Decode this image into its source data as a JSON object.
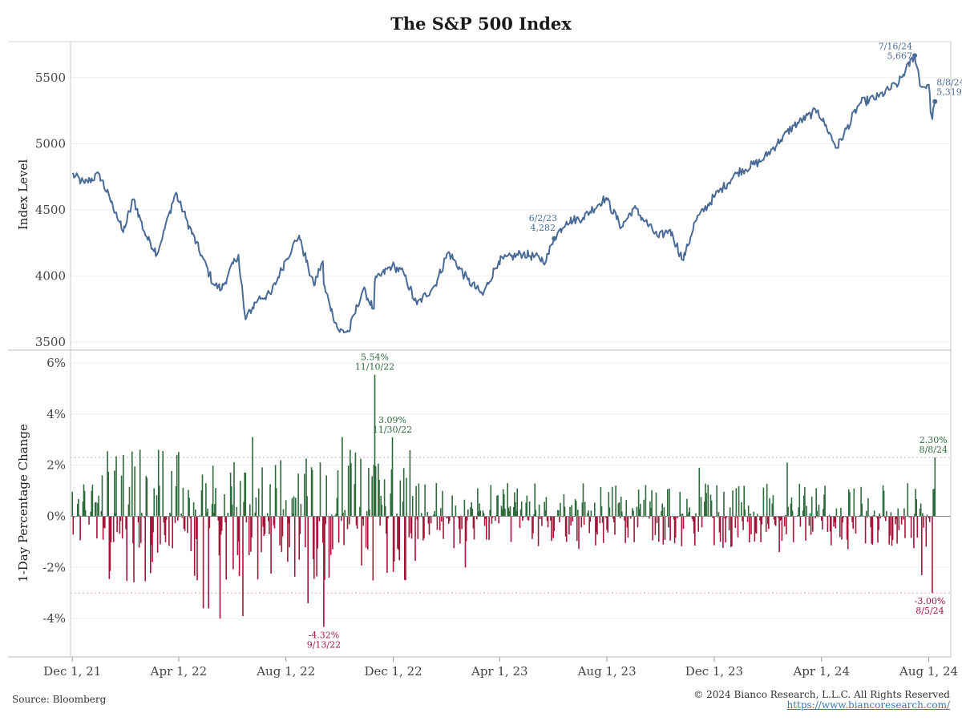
{
  "chart_data": {
    "title": "The S&P 500 Index",
    "type": "line+bar",
    "x_range": [
      "2021-11-29",
      "2024-08-26"
    ],
    "x_ticks": [
      {
        "date": "2021-12-01",
        "label": "Dec 1, 21"
      },
      {
        "date": "2022-04-01",
        "label": "Apr 1, 22"
      },
      {
        "date": "2022-08-01",
        "label": "Aug 1, 22"
      },
      {
        "date": "2022-12-01",
        "label": "Dec 1, 22"
      },
      {
        "date": "2023-04-01",
        "label": "Apr 1, 23"
      },
      {
        "date": "2023-08-01",
        "label": "Aug 1, 23"
      },
      {
        "date": "2023-12-01",
        "label": "Dec 1, 23"
      },
      {
        "date": "2024-04-01",
        "label": "Apr 1, 24"
      },
      {
        "date": "2024-08-01",
        "label": "Aug 1, 24"
      }
    ],
    "top_panel": {
      "type": "line",
      "ylabel": "Index Level",
      "ylim": [
        3450,
        5760
      ],
      "y_ticks": [
        3500,
        4000,
        4500,
        5000,
        5500
      ],
      "color": "#4a6b96",
      "series": [
        {
          "date": "2021-12-01",
          "value": 4770
        },
        {
          "date": "2021-12-15",
          "value": 4700
        },
        {
          "date": "2022-01-01",
          "value": 4766
        },
        {
          "date": "2022-01-20",
          "value": 4480
        },
        {
          "date": "2022-01-28",
          "value": 4330
        },
        {
          "date": "2022-02-09",
          "value": 4580
        },
        {
          "date": "2022-02-24",
          "value": 4290
        },
        {
          "date": "2022-03-08",
          "value": 4170
        },
        {
          "date": "2022-03-29",
          "value": 4630
        },
        {
          "date": "2022-04-11",
          "value": 4410
        },
        {
          "date": "2022-04-29",
          "value": 4130
        },
        {
          "date": "2022-05-11",
          "value": 3935
        },
        {
          "date": "2022-05-20",
          "value": 3900
        },
        {
          "date": "2022-06-08",
          "value": 4160
        },
        {
          "date": "2022-06-16",
          "value": 3670
        },
        {
          "date": "2022-07-01",
          "value": 3830
        },
        {
          "date": "2022-07-15",
          "value": 3860
        },
        {
          "date": "2022-08-01",
          "value": 4120
        },
        {
          "date": "2022-08-16",
          "value": 4305
        },
        {
          "date": "2022-09-02",
          "value": 3925
        },
        {
          "date": "2022-09-12",
          "value": 4110
        },
        {
          "date": "2022-09-13",
          "value": 3935
        },
        {
          "date": "2022-09-30",
          "value": 3585
        },
        {
          "date": "2022-10-12",
          "value": 3578
        },
        {
          "date": "2022-10-28",
          "value": 3900
        },
        {
          "date": "2022-11-09",
          "value": 3750
        },
        {
          "date": "2022-11-10",
          "value": 3956
        },
        {
          "date": "2022-11-30",
          "value": 4080
        },
        {
          "date": "2022-12-13",
          "value": 4020
        },
        {
          "date": "2022-12-28",
          "value": 3783
        },
        {
          "date": "2023-01-18",
          "value": 3930
        },
        {
          "date": "2023-02-02",
          "value": 4180
        },
        {
          "date": "2023-02-24",
          "value": 3970
        },
        {
          "date": "2023-03-13",
          "value": 3855
        },
        {
          "date": "2023-03-31",
          "value": 4110
        },
        {
          "date": "2023-04-28",
          "value": 4170
        },
        {
          "date": "2023-05-24",
          "value": 4115
        },
        {
          "date": "2023-06-02",
          "value": 4282
        },
        {
          "date": "2023-06-16",
          "value": 4410
        },
        {
          "date": "2023-07-05",
          "value": 4440
        },
        {
          "date": "2023-07-31",
          "value": 4590
        },
        {
          "date": "2023-08-18",
          "value": 4370
        },
        {
          "date": "2023-09-01",
          "value": 4515
        },
        {
          "date": "2023-09-29",
          "value": 4290
        },
        {
          "date": "2023-10-12",
          "value": 4350
        },
        {
          "date": "2023-10-27",
          "value": 4117
        },
        {
          "date": "2023-11-10",
          "value": 4415
        },
        {
          "date": "2023-12-01",
          "value": 4595
        },
        {
          "date": "2023-12-28",
          "value": 4783
        },
        {
          "date": "2024-01-24",
          "value": 4870
        },
        {
          "date": "2024-02-15",
          "value": 5030
        },
        {
          "date": "2024-03-01",
          "value": 5137
        },
        {
          "date": "2024-03-28",
          "value": 5254
        },
        {
          "date": "2024-04-19",
          "value": 4967
        },
        {
          "date": "2024-05-15",
          "value": 5308
        },
        {
          "date": "2024-06-05",
          "value": 5354
        },
        {
          "date": "2024-06-28",
          "value": 5460
        },
        {
          "date": "2024-07-16",
          "value": 5667
        },
        {
          "date": "2024-07-24",
          "value": 5427
        },
        {
          "date": "2024-08-01",
          "value": 5446
        },
        {
          "date": "2024-08-05",
          "value": 5186
        },
        {
          "date": "2024-08-08",
          "value": 5319
        }
      ],
      "annotations": [
        {
          "date": "2023-06-02",
          "value": 4282,
          "text": [
            "6/2/23",
            "4,282"
          ]
        },
        {
          "date": "2024-07-16",
          "value": 5667,
          "text": [
            "7/16/24",
            "5,667"
          ]
        },
        {
          "date": "2024-08-08",
          "value": 5319,
          "text": [
            "8/8/24",
            "5,319"
          ]
        }
      ]
    },
    "bottom_panel": {
      "type": "bar",
      "ylabel": "1-Day Percentage Change",
      "ylim": [
        -5.5,
        6.5
      ],
      "y_ticks": [
        {
          "value": 6,
          "label": "6%"
        },
        {
          "value": 4,
          "label": "4%"
        },
        {
          "value": 2,
          "label": "2%"
        },
        {
          "value": 0,
          "label": "0%"
        },
        {
          "value": -2,
          "label": "-2%"
        },
        {
          "value": -4,
          "label": "-4%"
        }
      ],
      "positive_color": "#2e6b3c",
      "negative_color": "#a3163a",
      "reference_lines": [
        2.3,
        -3.0
      ],
      "extremes": [
        {
          "date": "2022-01-28",
          "value": 2.4
        },
        {
          "date": "2022-02-24",
          "value": 1.5
        },
        {
          "date": "2022-03-09",
          "value": 2.6
        },
        {
          "date": "2022-04-29",
          "value": -3.6
        },
        {
          "date": "2022-05-05",
          "value": -3.6
        },
        {
          "date": "2022-05-18",
          "value": -4.0
        },
        {
          "date": "2022-06-13",
          "value": -3.9
        },
        {
          "date": "2022-06-24",
          "value": 3.1
        },
        {
          "date": "2022-08-26",
          "value": -3.4
        },
        {
          "date": "2022-09-13",
          "value": -4.32
        },
        {
          "date": "2022-10-04",
          "value": 3.1
        },
        {
          "date": "2022-10-13",
          "value": 2.6
        },
        {
          "date": "2022-11-10",
          "value": 5.54
        },
        {
          "date": "2022-11-30",
          "value": 3.09
        },
        {
          "date": "2022-12-15",
          "value": -2.5
        },
        {
          "date": "2023-02-21",
          "value": -2.0
        },
        {
          "date": "2023-11-14",
          "value": 1.9
        },
        {
          "date": "2024-02-13",
          "value": -1.4
        },
        {
          "date": "2024-02-22",
          "value": 2.1
        },
        {
          "date": "2024-07-24",
          "value": -2.3
        },
        {
          "date": "2024-08-05",
          "value": -3.0
        },
        {
          "date": "2024-08-08",
          "value": 2.3
        }
      ],
      "annotations": [
        {
          "date": "2022-11-10",
          "value": 5.54,
          "text": [
            "5.54%",
            "11/10/22"
          ]
        },
        {
          "date": "2022-11-30",
          "value": 3.09,
          "text": [
            "3.09%",
            "11/30/22"
          ]
        },
        {
          "date": "2022-09-13",
          "value": -4.32,
          "text": [
            "-4.32%",
            "9/13/22"
          ]
        },
        {
          "date": "2024-08-08",
          "value": 2.3,
          "text": [
            "2.30%",
            "8/8/24"
          ]
        },
        {
          "date": "2024-08-05",
          "value": -3.0,
          "text": [
            "-3.00%",
            "8/5/24"
          ]
        }
      ]
    }
  },
  "footer": {
    "source": "Source: Bloomberg",
    "copyright": "© 2024 Bianco Research, L.L.C. All Rights Reserved",
    "url": "https://www.biancoresearch.com/"
  }
}
